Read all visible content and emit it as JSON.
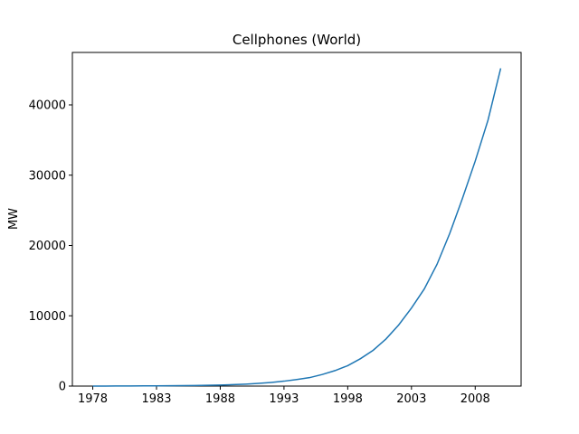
{
  "chart_data": {
    "type": "line",
    "title": "Cellphones (World)",
    "y_label": "MW",
    "x": [
      1978,
      1979,
      1980,
      1981,
      1982,
      1983,
      1984,
      1985,
      1986,
      1987,
      1988,
      1989,
      1990,
      1991,
      1992,
      1993,
      1994,
      1995,
      1996,
      1997,
      1998,
      1999,
      2000,
      2001,
      2002,
      2003,
      2004,
      2005,
      2006,
      2007,
      2008,
      2009,
      2010
    ],
    "series": [
      {
        "name": "Cellphones",
        "color": "#1f77b4",
        "values": [
          5,
          8,
          12,
          18,
          25,
          35,
          48,
          65,
          85,
          115,
          150,
          210,
          280,
          380,
          520,
          700,
          930,
          1200,
          1650,
          2200,
          2900,
          3900,
          5100,
          6700,
          8700,
          11100,
          13800,
          17300,
          21700,
          26700,
          32000,
          37800,
          45200
        ]
      }
    ],
    "xlim": [
      1976.4,
      2011.6
    ],
    "xticks": [
      1978,
      1983,
      1988,
      1993,
      1998,
      2003,
      2008
    ],
    "ylim": [
      0,
      47460
    ],
    "yticks": [
      0,
      10000,
      20000,
      30000,
      40000
    ]
  }
}
